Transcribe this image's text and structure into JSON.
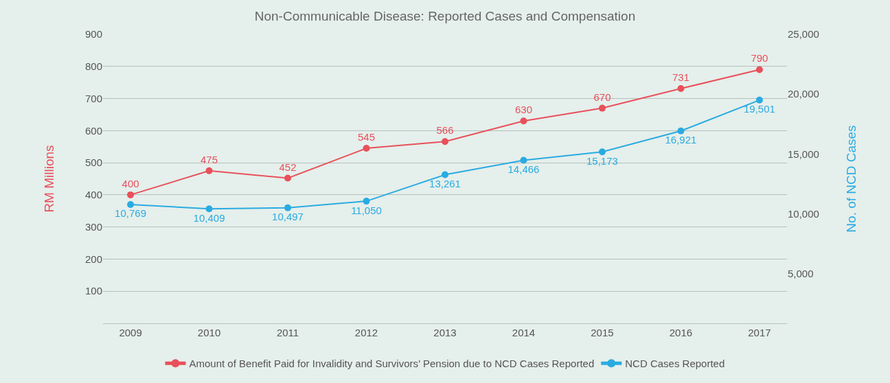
{
  "chart_data": {
    "type": "line",
    "title": "Non-Communicable Disease: Reported Cases and Compensation",
    "ylabel": "RM Millions",
    "y2label": "No. of NCD Cases",
    "categories": [
      "2009",
      "2010",
      "2011",
      "2012",
      "2013",
      "2014",
      "2015",
      "2016",
      "2017"
    ],
    "series": [
      {
        "name": "Amount of Benefit Paid for Invalidity and Survivors’ Pension due to NCD Cases Reported",
        "color": "#e8505b",
        "values": [
          400,
          475,
          452,
          545,
          566,
          630,
          670,
          731,
          790
        ],
        "value_labels": [
          "400",
          "475",
          "452",
          "545",
          "566",
          "630",
          "670",
          "731",
          "790"
        ]
      },
      {
        "name": "NCD Cases Reported",
        "color": "#29abe2",
        "axis": "y2",
        "values": [
          10769,
          10409,
          10497,
          11050,
          13261,
          14466,
          15173,
          16921,
          19501
        ],
        "value_labels": [
          "10,769",
          "10,409",
          "10,497",
          "11,050",
          "13,261",
          "14,466",
          "15,173",
          "16,921",
          "19,501"
        ]
      }
    ],
    "ylim": [
      0,
      900
    ],
    "yticks": [
      100,
      200,
      300,
      400,
      500,
      600,
      700,
      800,
      900
    ],
    "y2lim": [
      840,
      25000
    ],
    "y2ticks": [
      {
        "value": 5000,
        "label": "5,000"
      },
      {
        "value": 10000,
        "label": "10,000"
      },
      {
        "value": 15000,
        "label": "15,000"
      },
      {
        "value": 20000,
        "label": "20,000"
      },
      {
        "value": 25000,
        "label": "25,000"
      }
    ],
    "grid": "y",
    "legend": "bottom",
    "marker": "circle",
    "line_style": "solid"
  }
}
